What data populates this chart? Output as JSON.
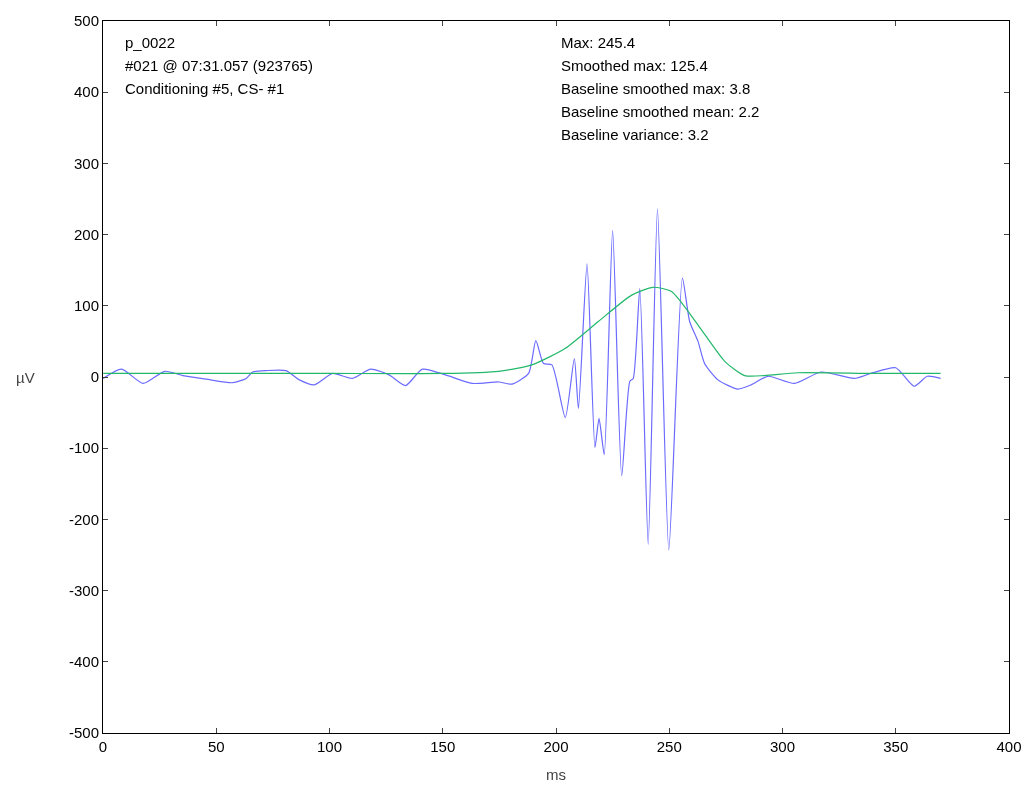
{
  "chart_data": {
    "type": "line",
    "xlabel": "ms",
    "ylabel": "µV",
    "xlim": [
      0,
      400
    ],
    "xticks": [
      0,
      50,
      100,
      150,
      200,
      250,
      300,
      350,
      400
    ],
    "ylim": [
      -500,
      500
    ],
    "yticks": [
      -500,
      -400,
      -300,
      -200,
      -100,
      0,
      100,
      200,
      300,
      400,
      500
    ],
    "marker": "none",
    "line_style": "solid",
    "annotations": [
      "p_0022",
      "#021 @ 07:31.057 (923765)",
      "Conditioning #5, CS- #1",
      "Max: 245.4",
      "Smoothed max: 125.4",
      "Baseline smoothed max: 3.8",
      "Baseline smoothed mean: 2.2",
      "Baseline variance: 3.2"
    ],
    "series": [
      {
        "color": "#6b6bff",
        "x": [
          0.1,
          8.2,
          17.7,
          27.3,
          35.3,
          45.6,
          57.3,
          63.2,
          66.1,
          72.0,
          80.8,
          86.7,
          93.3,
          101.4,
          110.1,
          118.2,
          126.3,
          133.6,
          141.0,
          151.2,
          163.0,
          174.7,
          180.6,
          187.9,
          191.1,
          194.5,
          198.2,
          204.1,
          208.1,
          209.9,
          213.7,
          217.2,
          219.0,
          221.3,
          225.0,
          229.0,
          232.6,
          234.1,
          237.0,
          240.7,
          244.8,
          249.8,
          255.8,
          259.0,
          262.7,
          265.6,
          271.5,
          280.3,
          286.2,
          293.5,
          305.3,
          317.0,
          331.7,
          339.0,
          350.0,
          358.1,
          363.9,
          369.8
        ],
        "values": [
          -2,
          11,
          -9,
          8,
          2,
          -3,
          -8,
          -2,
          7,
          9,
          9,
          -4,
          -11,
          5,
          -2,
          11,
          3,
          -12,
          11,
          3,
          -9,
          -7,
          -10,
          5,
          51,
          19,
          17,
          -57,
          26,
          -44,
          159,
          -99,
          -58,
          -109,
          206,
          -139,
          -6,
          -2,
          124,
          -235,
          236,
          -243,
          139,
          78,
          50,
          19,
          -4,
          -17,
          -11,
          1,
          -9,
          7,
          -2,
          5,
          13,
          -13,
          1,
          -2
        ]
      },
      {
        "color": "#22b86a",
        "x": [
          0.1,
          50,
          100,
          150,
          174.7,
          189.3,
          204.0,
          218.7,
          233.4,
          242.9,
          251.0,
          262.7,
          274.5,
          283.3,
          292.0,
          306.7,
          340,
          369.8
        ],
        "values": [
          5,
          5,
          5,
          5,
          8,
          17,
          40,
          78,
          115,
          126,
          120,
          73,
          22,
          2,
          2,
          6,
          5,
          5
        ]
      }
    ]
  }
}
